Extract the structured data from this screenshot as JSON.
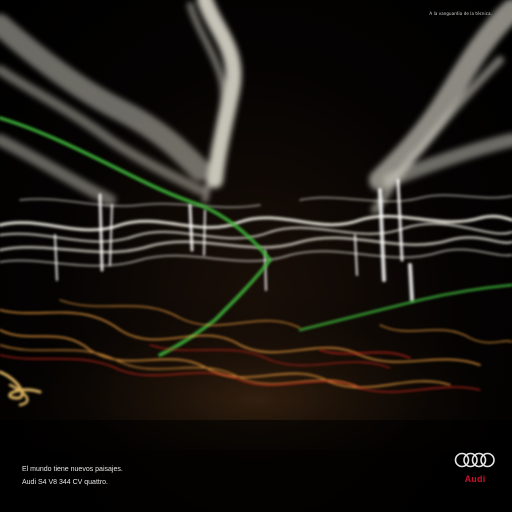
{
  "ad": {
    "tagline_prefix": "A la vanguardia de la técnica.",
    "tagline_accent": "",
    "headline_line1": "El mundo tiene nuevos paisajes.",
    "headline_line2": "Audi S4 V8 344 CV quattro.",
    "brand_name": "Audi",
    "logo_icon": "four-rings-icon"
  },
  "colors": {
    "background": "#000000",
    "light_trail_white": "#e8e6d8",
    "light_trail_green": "#3db43a",
    "light_trail_orange": "#f0a040",
    "light_trail_red": "#c8281e",
    "brand_red": "#c8102e"
  }
}
